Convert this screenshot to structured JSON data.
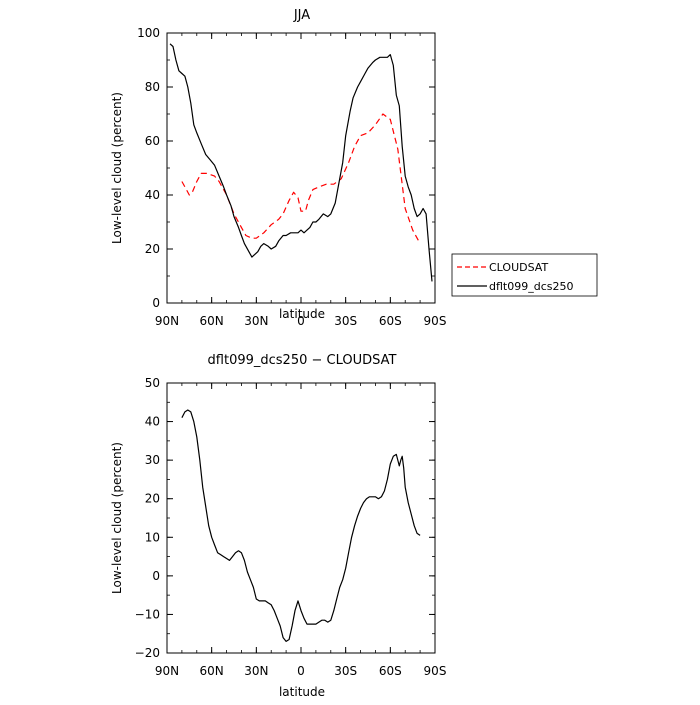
{
  "chart_data": [
    {
      "type": "line",
      "title": "JJA",
      "xlabel": "latitude",
      "ylabel": "Low-level cloud (percent)",
      "xlim": [
        90,
        -90
      ],
      "ylim": [
        0,
        100
      ],
      "xticks": [
        90,
        60,
        30,
        0,
        -30,
        -60,
        -90
      ],
      "xtick_labels": [
        "90N",
        "60N",
        "30N",
        "0",
        "30S",
        "60S",
        "90S"
      ],
      "yticks": [
        0,
        20,
        40,
        60,
        80,
        100
      ],
      "ytick_labels": [
        "0",
        "20",
        "40",
        "60",
        "80",
        "100"
      ],
      "legend_position": "right",
      "series": [
        {
          "name": "CLOUDSAT",
          "color": "#ff0000",
          "style": "dashed",
          "x": [
            80,
            77,
            75,
            73,
            70,
            67,
            63,
            58,
            55,
            50,
            45,
            40,
            37,
            33,
            30,
            25,
            20,
            15,
            12,
            8,
            5,
            2,
            0,
            -3,
            -5,
            -8,
            -12,
            -17,
            -22,
            -27,
            -32,
            -36,
            -40,
            -45,
            -50,
            -55,
            -60,
            -65,
            -70,
            -75,
            -80
          ],
          "y": [
            45,
            42,
            40,
            41,
            45,
            48,
            48,
            47,
            45,
            40,
            33,
            28,
            25,
            24,
            24,
            26,
            29,
            31,
            33,
            38,
            41,
            39,
            34,
            34,
            38,
            42,
            43,
            44,
            44,
            46,
            52,
            58,
            62,
            63,
            66,
            70,
            68,
            57,
            35,
            27,
            22
          ]
        },
        {
          "name": "dflt099_dcs250",
          "color": "#000000",
          "style": "solid",
          "x": [
            88,
            86,
            84,
            82,
            80,
            78,
            76,
            74,
            72,
            70,
            67,
            64,
            61,
            58,
            55,
            52,
            50,
            47,
            45,
            42,
            40,
            38,
            35,
            33,
            31,
            29,
            27,
            25,
            22,
            20,
            17,
            15,
            12,
            10,
            7,
            5,
            2,
            0,
            -2,
            -4,
            -6,
            -8,
            -10,
            -12,
            -15,
            -18,
            -20,
            -23,
            -25,
            -28,
            -30,
            -33,
            -35,
            -38,
            -40,
            -43,
            -45,
            -48,
            -50,
            -53,
            -55,
            -58,
            -60,
            -62,
            -64,
            -66,
            -68,
            -70,
            -72,
            -74,
            -76,
            -78,
            -80,
            -82,
            -84,
            -86,
            -88
          ],
          "y": [
            96,
            95,
            90,
            86,
            85,
            84,
            80,
            74,
            66,
            63,
            59,
            55,
            53,
            51,
            47,
            43,
            40,
            36,
            32,
            28,
            25,
            22,
            19,
            17,
            18,
            19,
            21,
            22,
            21,
            20,
            21,
            23,
            25,
            25,
            26,
            26,
            26,
            27,
            26,
            27,
            28,
            30,
            30,
            31,
            33,
            32,
            33,
            37,
            43,
            52,
            62,
            71,
            76,
            80,
            82,
            85,
            87,
            89,
            90,
            91,
            91,
            91,
            92,
            88,
            77,
            73,
            58,
            47,
            43,
            40,
            35,
            32,
            33,
            35,
            33,
            20,
            8
          ]
        }
      ]
    },
    {
      "type": "line",
      "title": "dflt099_dcs250 − CLOUDSAT",
      "xlabel": "latitude",
      "ylabel": "Low-level cloud (percent)",
      "xlim": [
        90,
        -90
      ],
      "ylim": [
        -20,
        50
      ],
      "xticks": [
        90,
        60,
        30,
        0,
        -30,
        -60,
        -90
      ],
      "xtick_labels": [
        "90N",
        "60N",
        "30N",
        "0",
        "30S",
        "60S",
        "90S"
      ],
      "yticks": [
        -20,
        -10,
        0,
        10,
        20,
        30,
        40,
        50
      ],
      "ytick_labels": [
        "−20",
        "−10",
        "0",
        "10",
        "20",
        "30",
        "40",
        "50"
      ],
      "series": [
        {
          "color": "#000000",
          "style": "solid",
          "x": [
            80,
            78,
            76,
            74,
            72,
            70,
            68,
            66,
            64,
            62,
            60,
            58,
            56,
            54,
            52,
            50,
            48,
            46,
            44,
            42,
            40,
            38,
            36,
            34,
            32,
            30,
            28,
            26,
            24,
            22,
            20,
            18,
            16,
            14,
            12,
            10,
            8,
            6,
            4,
            2,
            0,
            -2,
            -4,
            -6,
            -8,
            -10,
            -12,
            -14,
            -16,
            -18,
            -20,
            -22,
            -24,
            -26,
            -28,
            -30,
            -32,
            -34,
            -36,
            -38,
            -40,
            -42,
            -44,
            -46,
            -48,
            -50,
            -52,
            -54,
            -56,
            -58,
            -60,
            -62,
            -64,
            -65,
            -66,
            -67,
            -68,
            -69,
            -70,
            -72,
            -74,
            -76,
            -78,
            -80
          ],
          "y": [
            41,
            42.5,
            43,
            42.5,
            40,
            36,
            30,
            23,
            18,
            13,
            10,
            8,
            6,
            5.5,
            5,
            4.5,
            4,
            5,
            6,
            6.5,
            6,
            4,
            1,
            -1,
            -3,
            -6,
            -6.5,
            -6.5,
            -6.5,
            -7,
            -7.5,
            -9,
            -11,
            -13,
            -16,
            -17,
            -16.5,
            -13,
            -9,
            -6.5,
            -9,
            -11,
            -12.5,
            -12.5,
            -12.5,
            -12.5,
            -12,
            -11.5,
            -11.5,
            -12,
            -11.5,
            -9,
            -6,
            -3,
            -1,
            2,
            6,
            10,
            13,
            15.5,
            17.5,
            19,
            20,
            20.5,
            20.5,
            20.5,
            20,
            20.5,
            22,
            25,
            29,
            31,
            31.5,
            30,
            28.5,
            30,
            31,
            28,
            23,
            19,
            16,
            13,
            11,
            10.5
          ]
        }
      ]
    }
  ]
}
